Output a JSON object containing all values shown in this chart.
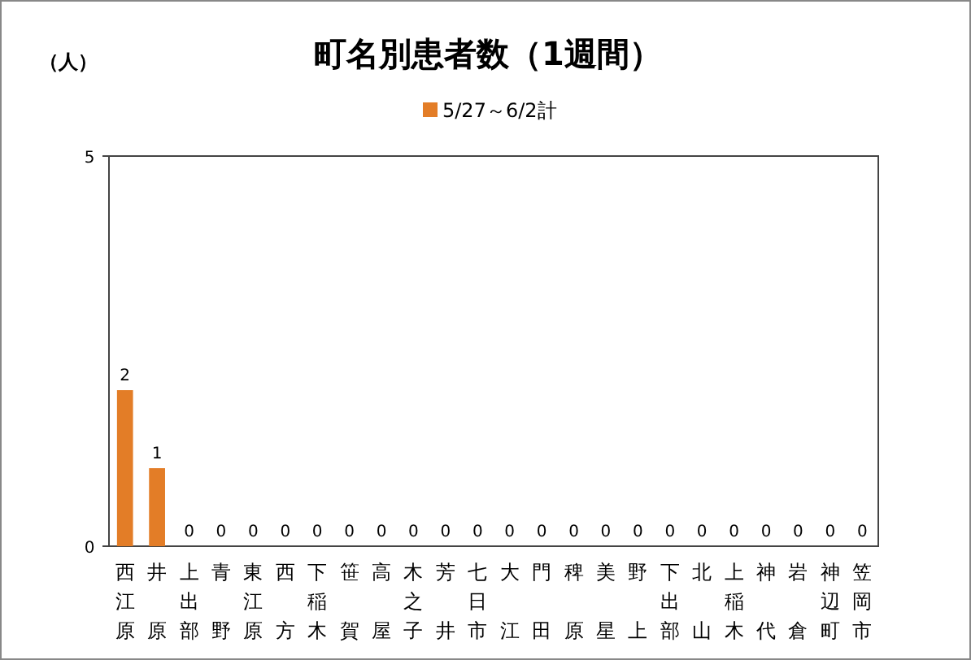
{
  "chart_data": {
    "type": "bar",
    "title": "町名別患者数（1週間）",
    "ylabel": "（人）",
    "categories": [
      "西江原",
      "井原",
      "上出部",
      "青野",
      "東江原",
      "西方",
      "下稲木",
      "笹賀",
      "高屋",
      "木之子",
      "芳井",
      "七日市",
      "大江",
      "門田",
      "稗原",
      "美星",
      "野上",
      "下出部",
      "北山",
      "上稲木",
      "神代",
      "岩倉",
      "神辺町",
      "笠岡市"
    ],
    "series": [
      {
        "name": "5/27～6/2計",
        "color": "#e37d27",
        "values": [
          2,
          1,
          0,
          0,
          0,
          0,
          0,
          0,
          0,
          0,
          0,
          0,
          0,
          0,
          0,
          0,
          0,
          0,
          0,
          0,
          0,
          0,
          0,
          0
        ]
      }
    ],
    "ylim": [
      0,
      5
    ],
    "yticks": [
      0,
      5
    ],
    "grid": false,
    "legend": "top",
    "data_labels": true
  }
}
